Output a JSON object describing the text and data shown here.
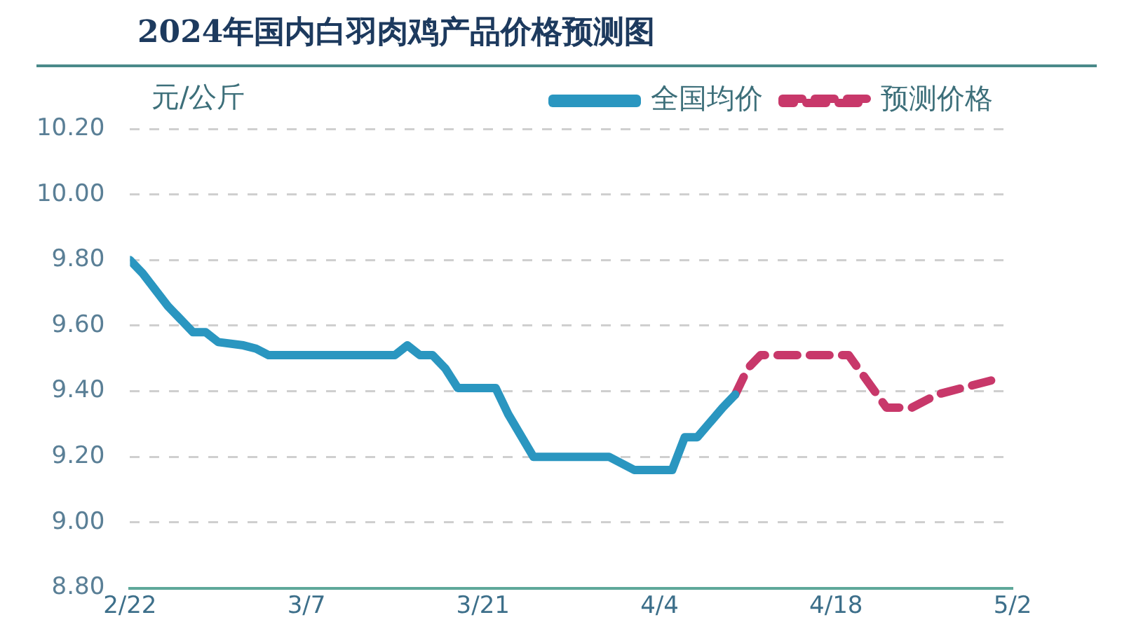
{
  "chart_data": {
    "type": "line",
    "title": "2024年国内白羽肉鸡产品价格预测图",
    "ylabel": "元/公斤",
    "series": [
      {
        "name": "全国均价",
        "color": "#2a96c0",
        "line_style": "solid",
        "x": [
          "2024-02-22",
          "2024-02-23",
          "2024-02-25",
          "2024-02-27",
          "2024-02-28",
          "2024-02-29",
          "2024-03-02",
          "2024-03-03",
          "2024-03-04",
          "2024-03-14",
          "2024-03-15",
          "2024-03-16",
          "2024-03-17",
          "2024-03-18",
          "2024-03-19",
          "2024-03-22",
          "2024-03-23",
          "2024-03-25",
          "2024-03-31",
          "2024-04-02",
          "2024-04-05",
          "2024-04-06",
          "2024-04-07",
          "2024-04-09",
          "2024-04-10"
        ],
        "values": [
          9.8,
          9.76,
          9.66,
          9.58,
          9.58,
          9.55,
          9.54,
          9.53,
          9.51,
          9.51,
          9.54,
          9.51,
          9.51,
          9.47,
          9.41,
          9.41,
          9.33,
          9.2,
          9.2,
          9.16,
          9.16,
          9.26,
          9.26,
          9.35,
          9.39
        ]
      },
      {
        "name": "预测价格",
        "color": "#c8386a",
        "line_style": "dashed",
        "x": [
          "2024-04-10",
          "2024-04-11",
          "2024-04-12",
          "2024-04-19",
          "2024-04-22",
          "2024-04-24",
          "2024-04-26",
          "2024-04-28",
          "2024-05-01"
        ],
        "values": [
          9.39,
          9.47,
          9.51,
          9.51,
          9.35,
          9.35,
          9.39,
          9.41,
          9.44
        ]
      }
    ],
    "xlim": [
      "2024-02-22",
      "2024-05-02"
    ],
    "xticks": [
      {
        "value": "2024-02-22",
        "label": "2/22"
      },
      {
        "value": "2024-03-07",
        "label": "3/7"
      },
      {
        "value": "2024-03-21",
        "label": "3/21"
      },
      {
        "value": "2024-04-04",
        "label": "4/4"
      },
      {
        "value": "2024-04-18",
        "label": "4/18"
      },
      {
        "value": "2024-05-02",
        "label": "5/2"
      }
    ],
    "ylim": [
      8.8,
      10.2
    ],
    "yticks": [
      {
        "value": 8.8,
        "label": "8.80"
      },
      {
        "value": 9,
        "label": "9.00"
      },
      {
        "value": 9.2,
        "label": "9.20"
      },
      {
        "value": 9.4,
        "label": "9.40"
      },
      {
        "value": 9.6,
        "label": "9.60"
      },
      {
        "value": 9.8,
        "label": "9.80"
      },
      {
        "value": 10,
        "label": "10.00"
      },
      {
        "value": 10.2,
        "label": "10.20"
      }
    ],
    "grid": "y",
    "legend": "top right",
    "marker": "none"
  }
}
